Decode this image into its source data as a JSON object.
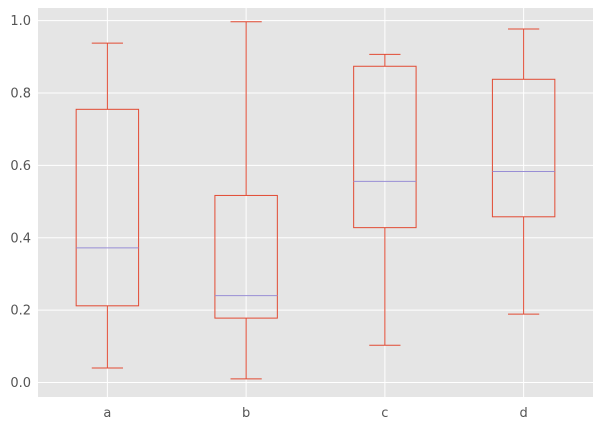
{
  "chart_data": {
    "type": "box",
    "title": "",
    "xlabel": "",
    "ylabel": "",
    "categories": [
      "a",
      "b",
      "c",
      "d"
    ],
    "ylim": [
      -0.04,
      1.035
    ],
    "yticks": [
      "0.0",
      "0.2",
      "0.4",
      "0.6",
      "0.8",
      "1.0"
    ],
    "grid": true,
    "boxes": [
      {
        "name": "a",
        "whisker_low": 0.04,
        "q1": 0.212,
        "median": 0.372,
        "q3": 0.755,
        "whisker_high": 0.938
      },
      {
        "name": "b",
        "whisker_low": 0.01,
        "q1": 0.178,
        "median": 0.24,
        "q3": 0.517,
        "whisker_high": 0.997
      },
      {
        "name": "c",
        "whisker_low": 0.103,
        "q1": 0.428,
        "median": 0.556,
        "q3": 0.874,
        "whisker_high": 0.907
      },
      {
        "name": "d",
        "whisker_low": 0.189,
        "q1": 0.458,
        "median": 0.583,
        "q3": 0.838,
        "whisker_high": 0.977
      }
    ],
    "colors": {
      "background": "#e5e5e5",
      "grid": "#ffffff",
      "box": "#e24a33",
      "median": "#988ed5",
      "tick_text": "#555555"
    }
  }
}
